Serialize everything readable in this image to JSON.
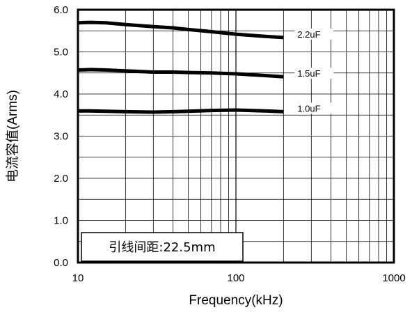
{
  "chart_data": {
    "type": "line",
    "title": "",
    "xlabel": "Frequency(kHz)",
    "ylabel": "电流容值(Arms)",
    "x_scale": "log",
    "xlim": [
      10,
      1000
    ],
    "ylim": [
      0,
      6
    ],
    "grid": true,
    "x_ticks": [
      10,
      100,
      1000
    ],
    "x_tick_labels": [
      "10",
      "100",
      "1000"
    ],
    "y_ticks": [
      0,
      1,
      2,
      3,
      4,
      5,
      6
    ],
    "y_tick_labels": [
      "0.0",
      "1.0",
      "2.0",
      "3.0",
      "4.0",
      "5.0",
      "6.0"
    ],
    "annotation": "引线间距:22.5mm",
    "series": [
      {
        "name": "2.2uF",
        "x": [
          10,
          12,
          15,
          20,
          30,
          40,
          50,
          70,
          100,
          150,
          200
        ],
        "y": [
          5.69,
          5.7,
          5.69,
          5.65,
          5.6,
          5.57,
          5.53,
          5.48,
          5.42,
          5.37,
          5.34
        ]
      },
      {
        "name": "1.5uF",
        "x": [
          10,
          12,
          15,
          20,
          30,
          40,
          50,
          70,
          100,
          150,
          200
        ],
        "y": [
          4.57,
          4.58,
          4.57,
          4.55,
          4.52,
          4.52,
          4.51,
          4.5,
          4.48,
          4.44,
          4.41
        ]
      },
      {
        "name": "1.0uF",
        "x": [
          10,
          12,
          15,
          20,
          30,
          40,
          50,
          70,
          100,
          150,
          200
        ],
        "y": [
          3.6,
          3.6,
          3.59,
          3.58,
          3.57,
          3.58,
          3.59,
          3.61,
          3.62,
          3.6,
          3.58
        ]
      }
    ]
  }
}
